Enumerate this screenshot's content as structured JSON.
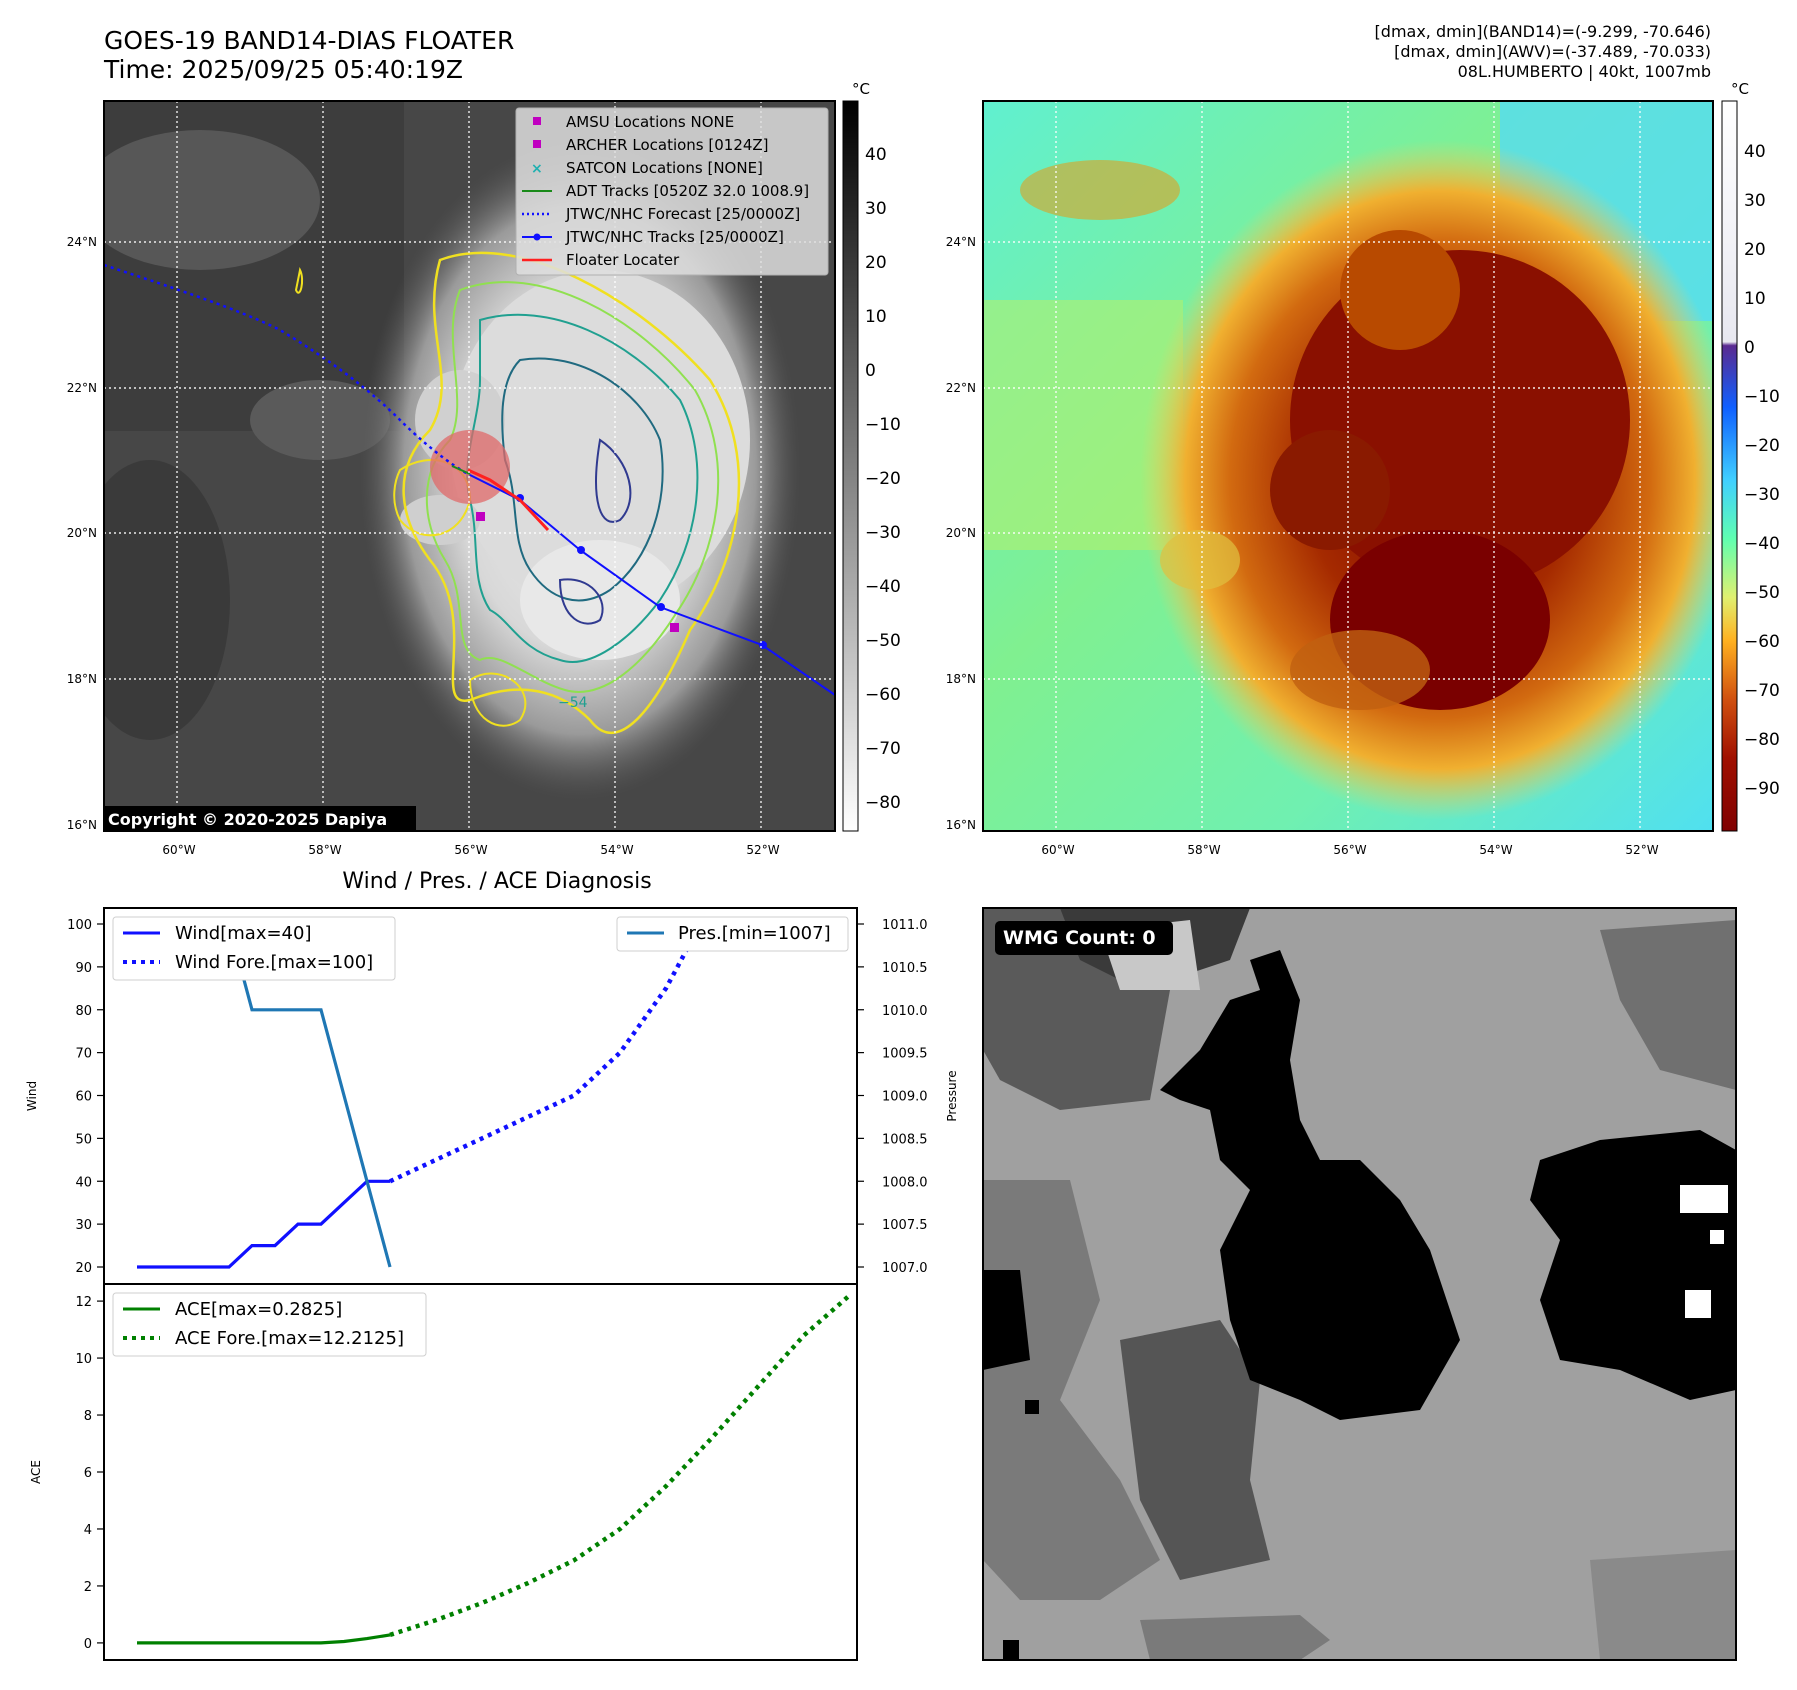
{
  "header": {
    "title_line1": "GOES-19 BAND14-DIAS FLOATER",
    "title_line2": "Time: 2025/09/25 05:40:19Z",
    "dmax_band14": "[dmax, dmin](BAND14)=(-9.299, -70.646)",
    "dmax_awv": "[dmax, dmin](AWV)=(-37.489, -70.033)",
    "storm_info": "08L.HUMBERTO | 40kt, 1007mb"
  },
  "map": {
    "lat_labels": [
      "24°N",
      "22°N",
      "20°N",
      "18°N",
      "16°N"
    ],
    "lon_labels": [
      "60°W",
      "58°W",
      "56°W",
      "54°W",
      "52°W"
    ],
    "copyright": "Copyright © 2020-2025 Dapiya",
    "contour_label": "−54",
    "legend": [
      {
        "label": "AMSU Locations NONE",
        "marker": "square",
        "color": "#c000c0"
      },
      {
        "label": "ARCHER Locations [0124Z]",
        "marker": "square",
        "color": "#c000c0"
      },
      {
        "label": "SATCON Locations [NONE]",
        "marker": "x",
        "color": "#20b0b0"
      },
      {
        "label": "ADT Tracks [0520Z 32.0 1008.9]",
        "marker": "line",
        "color": "#1a8a1a"
      },
      {
        "label": "JTWC/NHC Forecast [25/0000Z]",
        "marker": "dotted",
        "color": "#1010ff"
      },
      {
        "label": "JTWC/NHC Tracks [25/0000Z]",
        "marker": "line-dot",
        "color": "#1010ff"
      },
      {
        "label": "Floater Locater",
        "marker": "line",
        "color": "#ff2020"
      }
    ],
    "colorbar_unit": "°C",
    "colorbar1_ticks": [
      "40",
      "30",
      "20",
      "10",
      "0",
      "−10",
      "−20",
      "−30",
      "−40",
      "−50",
      "−60",
      "−70",
      "−80"
    ],
    "colorbar2_ticks": [
      "40",
      "30",
      "20",
      "10",
      "0",
      "−10",
      "−20",
      "−30",
      "−40",
      "−50",
      "−60",
      "−70",
      "−80",
      "−90"
    ]
  },
  "wmg": {
    "label": "WMG Count: 0"
  },
  "chart_data": [
    {
      "type": "line",
      "title": "Wind / Pres. / ACE Diagnosis",
      "ylabel": "Wind",
      "ylabel_right": "Pressure",
      "ylim": [
        20,
        100
      ],
      "ylim_right": [
        1007.0,
        1011.0
      ],
      "yticks": [
        "100",
        "90",
        "80",
        "70",
        "60",
        "50",
        "40",
        "30",
        "20"
      ],
      "yticks_right": [
        "1011.0",
        "1010.5",
        "1010.0",
        "1009.5",
        "1009.0",
        "1008.5",
        "1008.0",
        "1007.5",
        "1007.0"
      ],
      "x": [
        0,
        1,
        2,
        3,
        4,
        5,
        6,
        7,
        8,
        9,
        10,
        11,
        12,
        13,
        14,
        15,
        16,
        17,
        18,
        19,
        20,
        21,
        22,
        23,
        24,
        25,
        26,
        27,
        28,
        29,
        30
      ],
      "series": [
        {
          "name": "Wind[max=40]",
          "axis": "left",
          "style": "solid",
          "color": "#1010ff",
          "x": [
            0,
            1,
            2,
            3,
            4,
            5,
            6,
            7,
            8,
            9,
            10,
            11
          ],
          "values": [
            20,
            20,
            20,
            20,
            20,
            25,
            25,
            30,
            30,
            35,
            40,
            40
          ]
        },
        {
          "name": "Wind Fore.[max=100]",
          "axis": "left",
          "style": "dotted",
          "color": "#1010ff",
          "x": [
            11,
            13,
            15,
            17,
            19,
            21,
            23,
            24,
            25,
            27,
            29,
            30
          ],
          "values": [
            40,
            45,
            50,
            55,
            60,
            70,
            85,
            95,
            95,
            100,
            100,
            100
          ]
        },
        {
          "name": "Pres.[min=1007]",
          "axis": "right",
          "style": "solid",
          "color": "#1f77b4",
          "x": [
            0,
            1,
            2,
            3,
            4,
            5,
            6,
            7,
            8,
            9,
            10,
            11
          ],
          "values": [
            1011.0,
            1011.0,
            1011.0,
            1011.0,
            1011.0,
            1010.0,
            1010.0,
            1010.0,
            1010.0,
            1009.0,
            1008.0,
            1007.0
          ]
        }
      ]
    },
    {
      "type": "line",
      "ylabel": "ACE",
      "ylim": [
        -0.6,
        12.6
      ],
      "yticks": [
        "12",
        "10",
        "8",
        "6",
        "4",
        "2",
        "0"
      ],
      "series": [
        {
          "name": "ACE[max=0.2825]",
          "style": "solid",
          "color": "#008000",
          "x": [
            0,
            1,
            2,
            3,
            4,
            5,
            6,
            7,
            8,
            9,
            10,
            11
          ],
          "values": [
            0,
            0,
            0,
            0,
            0,
            0,
            0,
            0,
            0,
            0.05,
            0.15,
            0.2825
          ]
        },
        {
          "name": "ACE Fore.[max=12.2125]",
          "style": "dotted",
          "color": "#008000",
          "x": [
            11,
            13,
            15,
            17,
            19,
            21,
            23,
            25,
            27,
            29,
            31
          ],
          "values": [
            0.2825,
            0.8,
            1.4,
            2.1,
            2.9,
            4.0,
            5.5,
            7.2,
            9.0,
            10.8,
            12.2125
          ]
        }
      ]
    }
  ]
}
